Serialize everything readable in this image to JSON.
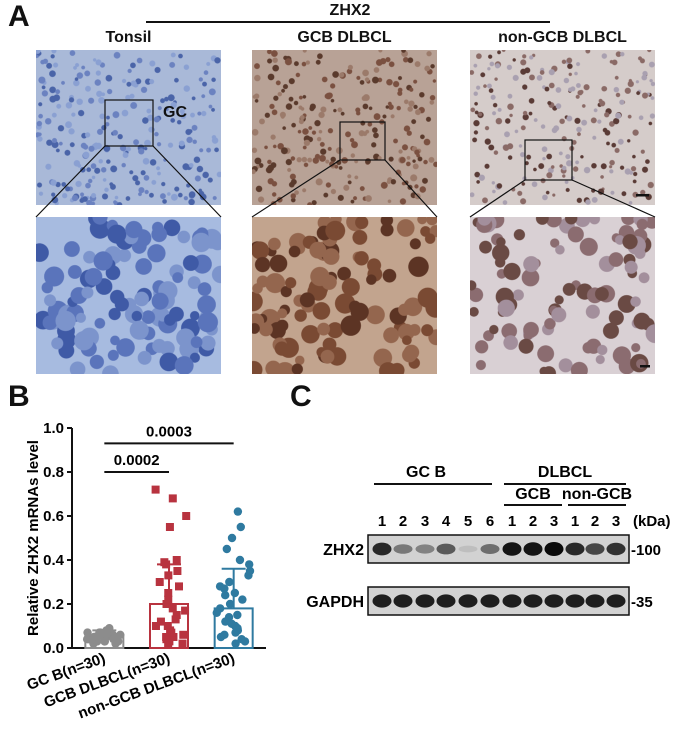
{
  "panel_a": {
    "letter": "A",
    "group_label": "ZHX2",
    "columns": [
      "Tonsil",
      "GCB DLBCL",
      "non-GCB DLBCL"
    ],
    "gc_label": "GC"
  },
  "panel_b": {
    "letter": "B",
    "chart_data": {
      "type": "bar",
      "categories": [
        "GC B(n=30)",
        "GCB DLBCL(n=30)",
        "non-GCB DLBCL(n=30)"
      ],
      "values": [
        0.06,
        0.2,
        0.18
      ],
      "errors": [
        0.02,
        0.18,
        0.18
      ],
      "ylabel": "Relative ZHX2 mRNAs level",
      "ylim": [
        0,
        1.0
      ],
      "yticks": [
        "0.0",
        "0.2",
        "0.4",
        "0.6",
        "0.8",
        "1.0"
      ],
      "colors": [
        "#8c8c8c",
        "#b8333f",
        "#2f7aa0"
      ],
      "points": [
        [
          0.02,
          0.03,
          0.04,
          0.05,
          0.06,
          0.07,
          0.05,
          0.04,
          0.03,
          0.06,
          0.08,
          0.05,
          0.04,
          0.07,
          0.06,
          0.05,
          0.03,
          0.02,
          0.04,
          0.06,
          0.05,
          0.07,
          0.04,
          0.03,
          0.05,
          0.06,
          0.04,
          0.05,
          0.03,
          0.09
        ],
        [
          0.02,
          0.03,
          0.05,
          0.06,
          0.08,
          0.1,
          0.12,
          0.15,
          0.17,
          0.2,
          0.22,
          0.25,
          0.28,
          0.3,
          0.33,
          0.35,
          0.38,
          0.39,
          0.4,
          0.04,
          0.07,
          0.1,
          0.13,
          0.02,
          0.05,
          0.18,
          0.55,
          0.6,
          0.68,
          0.72
        ],
        [
          0.02,
          0.04,
          0.05,
          0.07,
          0.08,
          0.1,
          0.12,
          0.14,
          0.15,
          0.18,
          0.2,
          0.22,
          0.25,
          0.28,
          0.3,
          0.33,
          0.35,
          0.38,
          0.4,
          0.45,
          0.03,
          0.06,
          0.09,
          0.11,
          0.16,
          0.24,
          0.27,
          0.5,
          0.55,
          0.62
        ]
      ],
      "comparisons": [
        {
          "label": "0.0002",
          "from": 0,
          "to": 1,
          "y": 0.8
        },
        {
          "label": "0.0003",
          "from": 0,
          "to": 2,
          "y": 0.93
        }
      ]
    }
  },
  "panel_c": {
    "letter": "C",
    "group_gcb": "GC B",
    "group_dlbcl": "DLBCL",
    "sub_gcb": "GCB",
    "sub_non_gcb": "non-GCB",
    "lanes": [
      "1",
      "2",
      "3",
      "4",
      "5",
      "6",
      "1",
      "2",
      "3",
      "1",
      "2",
      "3"
    ],
    "kda_label": "(kDa)",
    "rows": [
      {
        "label": "ZHX2",
        "marker": "-100",
        "intensity": [
          0.85,
          0.45,
          0.4,
          0.6,
          0.1,
          0.5,
          0.95,
          0.95,
          1.0,
          0.85,
          0.7,
          0.8
        ]
      },
      {
        "label": "GAPDH",
        "marker": "-35",
        "intensity": [
          0.9,
          0.9,
          0.9,
          0.9,
          0.9,
          0.9,
          0.9,
          0.9,
          0.9,
          0.9,
          0.9,
          0.9
        ]
      }
    ]
  }
}
